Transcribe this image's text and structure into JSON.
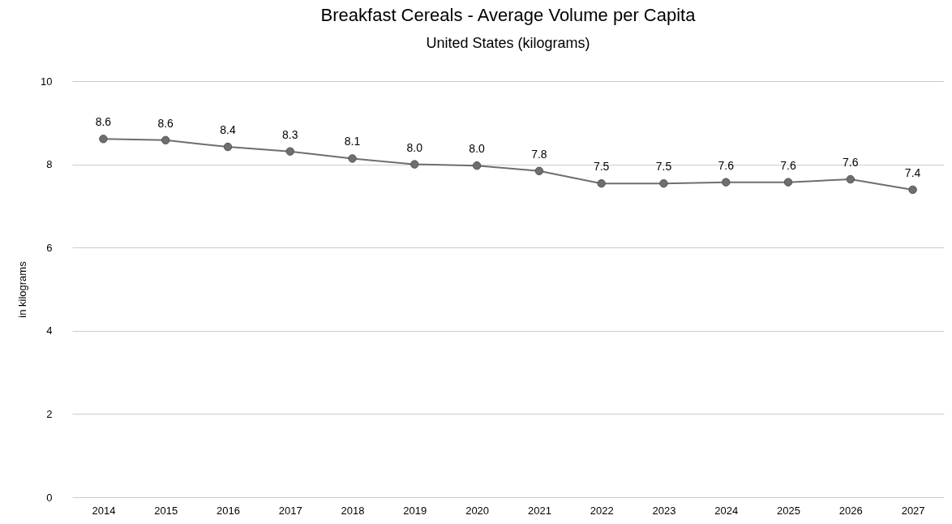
{
  "chart_data": {
    "type": "line",
    "title": "Breakfast Cereals - Average Volume per Capita",
    "subtitle": "United States (kilograms)",
    "ylabel": "in kilograms",
    "categories": [
      "2014",
      "2015",
      "2016",
      "2017",
      "2018",
      "2019",
      "2020",
      "2021",
      "2022",
      "2023",
      "2024",
      "2025",
      "2026",
      "2027"
    ],
    "series": [
      {
        "color": "#6e6e6e",
        "values": [
          8.61,
          8.58,
          8.42,
          8.31,
          8.14,
          8.0,
          7.97,
          7.84,
          7.54,
          7.54,
          7.57,
          7.57,
          7.64,
          7.39
        ],
        "value_labels": [
          "8.6",
          "8.6",
          "8.4",
          "8.3",
          "8.1",
          "8.0",
          "8.0",
          "7.8",
          "7.5",
          "7.5",
          "7.6",
          "7.6",
          "7.6",
          "7.4"
        ]
      }
    ],
    "ylim": [
      0,
      10
    ],
    "yticks": [
      0,
      2,
      4,
      6,
      8,
      10
    ],
    "grid": "y",
    "marker": "circle",
    "line_style": "solid",
    "legend": false
  }
}
